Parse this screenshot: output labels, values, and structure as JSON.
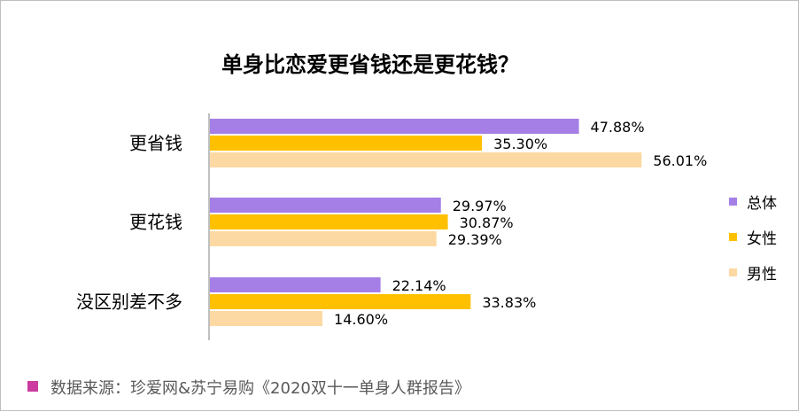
{
  "chart_data": {
    "type": "bar",
    "orientation": "horizontal",
    "title": "单身比恋爱更省钱还是更花钱？",
    "categories": [
      "更省钱",
      "更花钱",
      "没区别差不多"
    ],
    "series": [
      {
        "name": "总体",
        "color": "#a57fe6",
        "values": [
          47.88,
          29.97,
          22.14
        ],
        "labels": [
          "47.88%",
          "29.97%",
          "22.14%"
        ]
      },
      {
        "name": "女性",
        "color": "#ffc000",
        "values": [
          35.3,
          30.87,
          33.83
        ],
        "labels": [
          "35.30%",
          "30.87%",
          "33.83%"
        ]
      },
      {
        "name": "男性",
        "color": "#fcd9a2",
        "values": [
          56.01,
          29.39,
          14.6
        ],
        "labels": [
          "56.01%",
          "29.39%",
          "14.60%"
        ]
      }
    ],
    "xlim": [
      0,
      60
    ],
    "unit": "%",
    "legend_position": "right"
  },
  "source": {
    "text": "数据来源：珍爱网&苏宁易购《2020双十一单身人群报告》",
    "marker_color": "#cc3ba0"
  }
}
